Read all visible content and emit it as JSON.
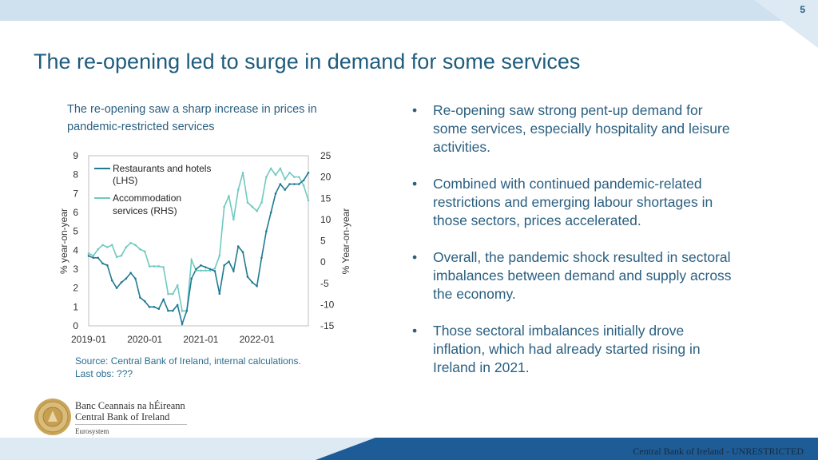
{
  "slide": {
    "number": "5",
    "title": "The re-opening led to surge in demand for some services"
  },
  "chart_title": "The re-opening saw a sharp increase in prices in pandemic-restricted services",
  "source": {
    "line1": "Source: Central Bank of Ireland, internal calculations.",
    "line2": "Last obs: ???"
  },
  "bullets": [
    "Re-opening saw strong pent-up demand for some services, especially hospitality and leisure activities.",
    "Combined with continued pandemic-related restrictions and emerging labour shortages in those sectors, prices accelerated.",
    "Overall, the pandemic shock resulted in sectoral imbalances between demand and supply across the economy.",
    "Those sectoral imbalances initially drove inflation, which had already started rising in Ireland in 2021."
  ],
  "logo": {
    "line1": "Banc Ceannais na hÉireann",
    "line2": "Central Bank of Ireland",
    "line3": "Eurosystem"
  },
  "footer": "Central Bank of Ireland - UNRESTRICTED",
  "colors": {
    "series1": "#1f7a93",
    "series2": "#6fcabf",
    "title": "#1e5c7e",
    "footer_bar": "#1d5c96"
  },
  "chart_data": {
    "type": "line",
    "x_tick_labels": [
      "2019-01",
      "2020-01",
      "2021-01",
      "2022-01"
    ],
    "x_tick_positions": [
      0,
      12,
      24,
      36
    ],
    "n_points": 48,
    "y_left": {
      "label": "% year-on-year",
      "range": [
        0,
        9
      ],
      "ticks": [
        0,
        1,
        2,
        3,
        4,
        5,
        6,
        7,
        8,
        9
      ]
    },
    "y_right": {
      "label": "% Year-on-year",
      "range": [
        -15,
        25
      ],
      "ticks": [
        -15,
        -10,
        -5,
        0,
        5,
        10,
        15,
        20,
        25
      ]
    },
    "series": [
      {
        "name": "Restaurants and hotels (LHS)",
        "legend_line1": "Restaurants and hotels",
        "legend_line2": "(LHS)",
        "axis": "left",
        "values": [
          3.7,
          3.6,
          3.6,
          3.3,
          3.2,
          2.4,
          2.0,
          2.3,
          2.5,
          2.8,
          2.5,
          1.5,
          1.3,
          1.0,
          1.0,
          0.9,
          1.4,
          0.8,
          0.8,
          1.1,
          0.1,
          0.8,
          2.5,
          3.0,
          3.2,
          3.1,
          3.0,
          2.9,
          1.7,
          3.2,
          3.4,
          2.9,
          4.2,
          3.9,
          2.6,
          2.3,
          2.1,
          3.6,
          5.0,
          6.0,
          7.0,
          7.5,
          7.2,
          7.5,
          7.5,
          7.5,
          7.7,
          8.1
        ]
      },
      {
        "name": "Accommodation services (RHS)",
        "legend_line1": "Accommodation",
        "legend_line2": "services (RHS)",
        "axis": "right",
        "values": [
          2.0,
          1.5,
          3.0,
          4.0,
          3.5,
          4.0,
          1.2,
          1.5,
          3.5,
          4.5,
          4.0,
          3.0,
          2.5,
          -1.0,
          -1.0,
          -1.0,
          -1.2,
          -7.5,
          -7.5,
          -5.5,
          -11.5,
          -11.5,
          0.5,
          -2.0,
          -2.0,
          -2.0,
          -2.0,
          -1.5,
          1.5,
          13.0,
          15.5,
          10.0,
          17.0,
          21.0,
          14.0,
          13.0,
          12.0,
          14.0,
          20.0,
          22.0,
          20.5,
          22.0,
          19.5,
          21.0,
          20.0,
          20.0,
          18.0,
          14.5
        ]
      }
    ]
  }
}
